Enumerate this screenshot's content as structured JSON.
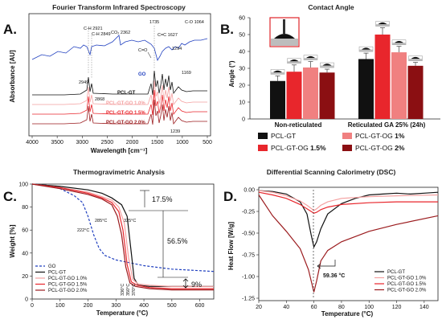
{
  "chart_data": [
    {
      "panel": "A.",
      "type": "line",
      "title": "Fourier Transform Infrared Spectroscopy",
      "xlabel": "Wavelength [cm⁻¹]",
      "ylabel": "Absorbance [AU]",
      "xlim": [
        4000,
        500
      ],
      "x_ticks": [
        "4000",
        "3500",
        "3000",
        "2500",
        "2000",
        "1500",
        "1000",
        "500"
      ],
      "series": [
        {
          "name": "GO",
          "color": "#1f3fbf"
        },
        {
          "name": "PCL-GT",
          "color": "#111111"
        },
        {
          "name": "PCL-GT-GO 1.0%",
          "color": "#f4a0a0"
        },
        {
          "name": "PCL-GT-GO 1.5%",
          "color": "#e8262c"
        },
        {
          "name": "PCL-GT-GO 2.0%",
          "color": "#9b1b1e"
        }
      ],
      "annotations": [
        "C-H 2921",
        "C-H 2849",
        "CO₂ 2362",
        "C=O",
        "1735",
        "C=C 1627",
        "C-O 1064",
        "1294",
        "1169",
        "2949",
        "2868",
        "1239"
      ]
    },
    {
      "panel": "B.",
      "type": "bar",
      "title": "Contact Angle",
      "ylabel": "Angle (°)",
      "ylim": [
        0,
        60
      ],
      "y_ticks": [
        "0",
        "10",
        "20",
        "30",
        "40",
        "50",
        "60"
      ],
      "categories": [
        "Non-reticulated",
        "Reticulated GA 25% (24h)"
      ],
      "series": [
        {
          "name": "PCL-GT",
          "color": "#111111",
          "values": [
            22.5,
            35.5
          ],
          "err": [
            3,
            3.5
          ]
        },
        {
          "name": "PCL-GT-OG 1.5%",
          "color": "#e8262c",
          "values": [
            28,
            50
          ],
          "err": [
            4,
            4
          ]
        },
        {
          "name": "PCL-GT-OG 1%",
          "color": "#f08080",
          "values": [
            30.5,
            39.5
          ],
          "err": [
            3.5,
            3.5
          ]
        },
        {
          "name": "PCL-GT-OG 2%",
          "color": "#8b0f12",
          "values": [
            27.5,
            31.5
          ],
          "err": [
            2,
            2
          ]
        }
      ],
      "legend": [
        {
          "pre": "PCL-GT",
          "bold": "",
          "color": "#111111"
        },
        {
          "pre": "PCL-GT-OG ",
          "bold": "1%",
          "color": "#f08080"
        },
        {
          "pre": "PCL-GT-OG ",
          "bold": "1.5%",
          "color": "#e8262c"
        },
        {
          "pre": "PCL-GT-OG ",
          "bold": "2%",
          "color": "#8b0f12"
        }
      ]
    },
    {
      "panel": "C.",
      "type": "line",
      "title": "Thermogravimetric Analysis",
      "xlabel": "Temperature (°C)",
      "ylabel": "Weight [%]",
      "xlim": [
        0,
        650
      ],
      "ylim": [
        0,
        100
      ],
      "x_ticks": [
        "0",
        "100",
        "200",
        "300",
        "400",
        "500",
        "600"
      ],
      "y_ticks": [
        "0",
        "20",
        "40",
        "60",
        "80",
        "100"
      ],
      "series": [
        {
          "name": "GO",
          "color": "#1f3fbf",
          "dashed": true,
          "x": [
            0,
            50,
            100,
            150,
            180,
            200,
            220,
            240,
            260,
            300,
            400,
            500,
            650
          ],
          "y": [
            100,
            99,
            96,
            90,
            84,
            72,
            56,
            44,
            38,
            34,
            29,
            26,
            24
          ]
        },
        {
          "name": "PCL-GT",
          "color": "#111111",
          "x": [
            0,
            100,
            200,
            250,
            285,
            320,
            340,
            355,
            365,
            380,
            420,
            500,
            650
          ],
          "y": [
            100,
            98,
            95,
            92,
            88,
            82,
            72,
            40,
            18,
            12,
            11,
            11,
            11
          ]
        },
        {
          "name": "PCL-GT-GO 1.0%",
          "color": "#f4a0a0",
          "x": [
            0,
            100,
            200,
            250,
            285,
            310,
            330,
            345,
            360,
            380,
            420,
            500,
            650
          ],
          "y": [
            100,
            97,
            93,
            89,
            86,
            80,
            66,
            36,
            17,
            13,
            12,
            11,
            11
          ]
        },
        {
          "name": "PCL-GT-GO 1.5%",
          "color": "#e8262c",
          "x": [
            0,
            100,
            200,
            250,
            285,
            310,
            325,
            340,
            355,
            375,
            420,
            500,
            650
          ],
          "y": [
            100,
            97,
            92,
            88,
            84,
            76,
            60,
            30,
            15,
            12,
            10,
            9,
            9
          ]
        },
        {
          "name": "PCL-GT-GO 2.0%",
          "color": "#9b1b1e",
          "x": [
            0,
            100,
            200,
            250,
            285,
            305,
            320,
            335,
            350,
            370,
            420,
            500,
            650
          ],
          "y": [
            100,
            96,
            91,
            87,
            82,
            72,
            56,
            28,
            14,
            11,
            9,
            8,
            8
          ]
        }
      ],
      "annotations": [
        "222°C",
        "285°C",
        "325°C",
        "17.5%",
        "56.5%",
        "9%",
        "336°C",
        "350°C",
        "370°C"
      ]
    },
    {
      "panel": "D.",
      "type": "line",
      "title": "Differential Scanning Calorimetry (DSC)",
      "xlabel": "Temperature (°C)",
      "ylabel": "Heat Flow [W/g]",
      "xlim": [
        20,
        150
      ],
      "ylim": [
        -1.25,
        0
      ],
      "x_ticks": [
        "20",
        "40",
        "60",
        "80",
        "100",
        "120",
        "140"
      ],
      "y_ticks": [
        "0.00",
        "-0.25",
        "-0.50",
        "-0.75",
        "-1.00",
        "-1.25"
      ],
      "series": [
        {
          "name": "PCL-GT",
          "color": "#111111",
          "x": [
            20,
            30,
            40,
            50,
            55,
            58,
            60,
            62,
            65,
            70,
            80,
            90,
            100,
            110,
            120,
            130,
            140,
            150
          ],
          "y": [
            -0.01,
            -0.02,
            -0.05,
            -0.14,
            -0.28,
            -0.52,
            -0.66,
            -0.6,
            -0.45,
            -0.28,
            -0.16,
            -0.1,
            -0.06,
            -0.05,
            -0.04,
            -0.05,
            -0.04,
            -0.03
          ]
        },
        {
          "name": "PCL-GT-GO 1.0%",
          "color": "#f4a0a0",
          "x": [
            20,
            30,
            40,
            50,
            55,
            60,
            62,
            65,
            70,
            80,
            100,
            120,
            150
          ],
          "y": [
            -0.01,
            -0.03,
            -0.07,
            -0.13,
            -0.18,
            -0.24,
            -0.22,
            -0.18,
            -0.14,
            -0.1,
            -0.08,
            -0.07,
            -0.06
          ]
        },
        {
          "name": "PCL-GT-GO 1.5%",
          "color": "#e8262c",
          "x": [
            20,
            30,
            40,
            50,
            55,
            60,
            62,
            65,
            70,
            80,
            100,
            120,
            150
          ],
          "y": [
            -0.03,
            -0.06,
            -0.1,
            -0.17,
            -0.22,
            -0.27,
            -0.26,
            -0.23,
            -0.2,
            -0.17,
            -0.15,
            -0.14,
            -0.14
          ]
        },
        {
          "name": "PCL-GT-GO 2.0%",
          "color": "#9b1b1e",
          "x": [
            20,
            25,
            30,
            40,
            50,
            56,
            60,
            62,
            65,
            70,
            80,
            100,
            120,
            150
          ],
          "y": [
            -0.06,
            -0.18,
            -0.3,
            -0.48,
            -0.68,
            -0.92,
            -1.18,
            -1.05,
            -0.82,
            -0.7,
            -0.6,
            -0.48,
            -0.4,
            -0.3
          ]
        }
      ],
      "annotations": [
        "59.36 °C"
      ]
    }
  ]
}
